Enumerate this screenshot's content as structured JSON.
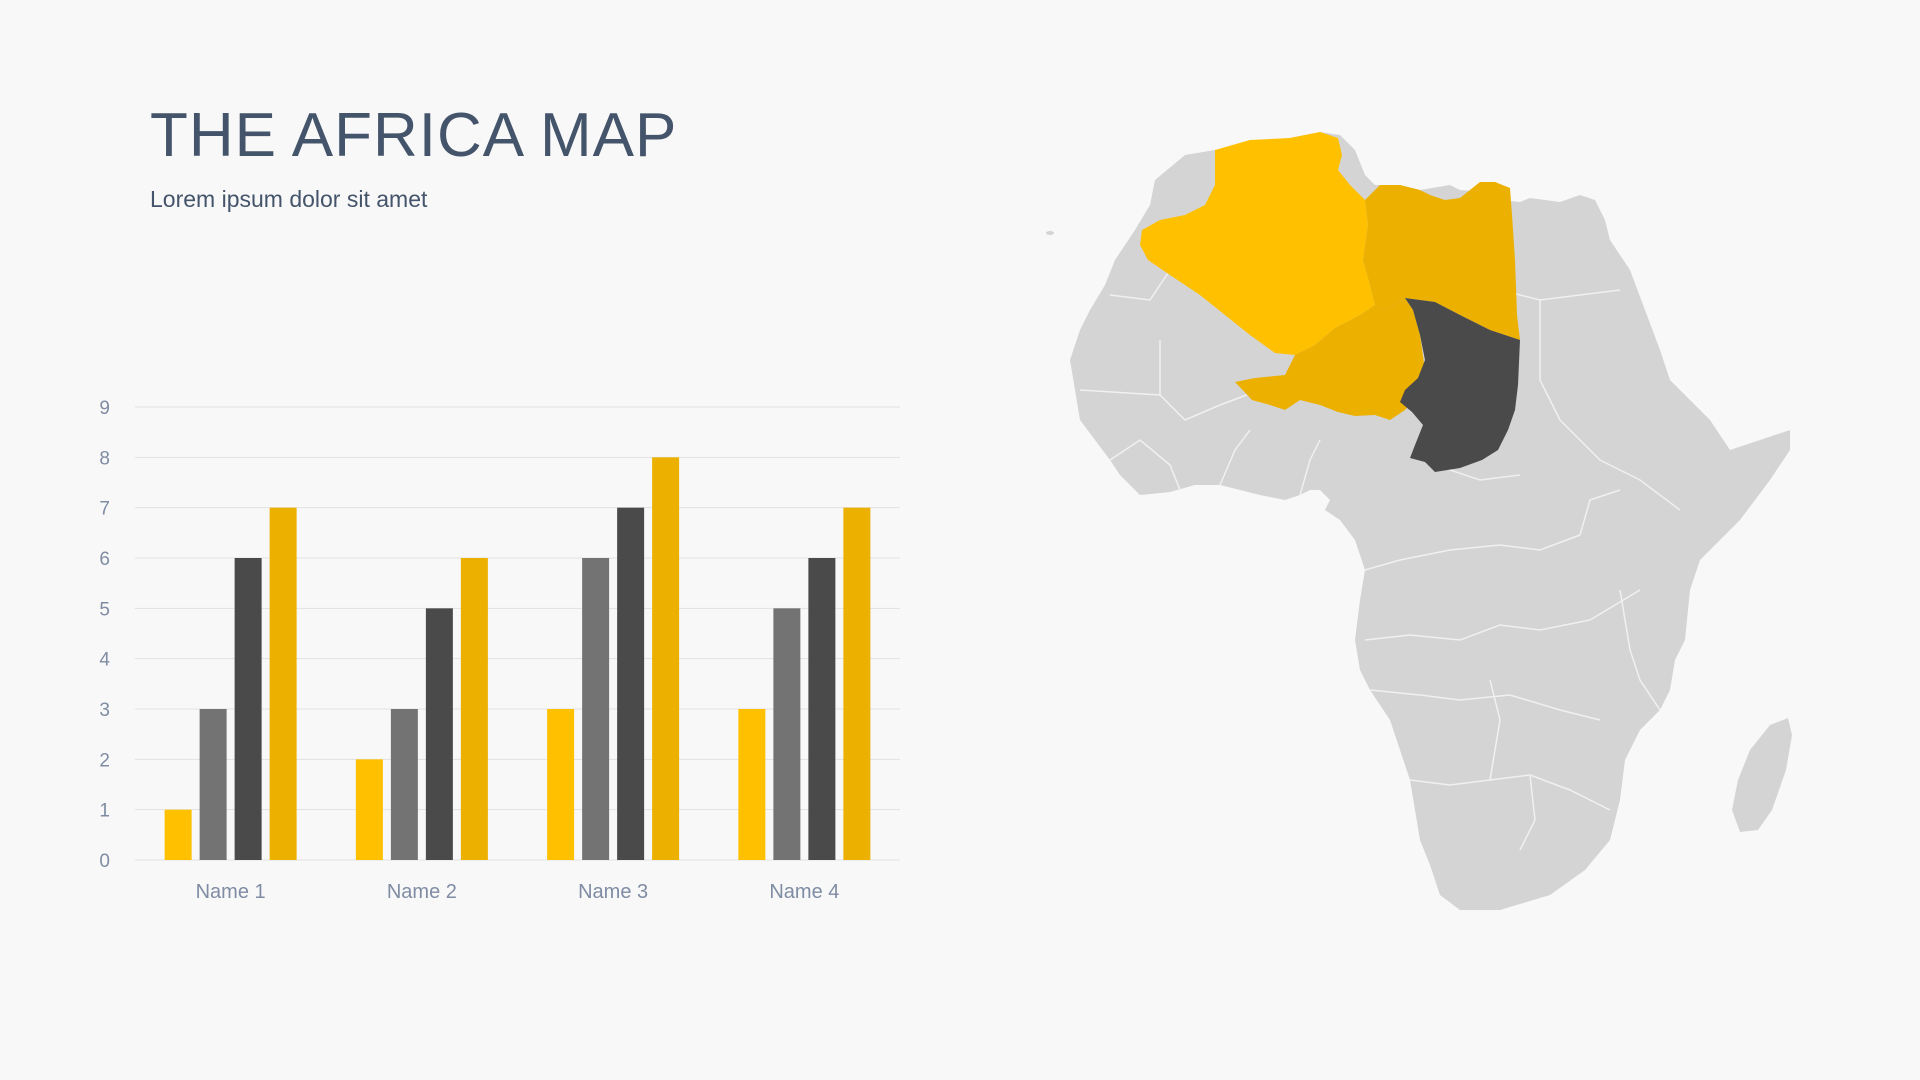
{
  "slide": {
    "title": "THE AFRICA MAP",
    "subtitle": "Lorem ipsum  dolor sit amet"
  },
  "colors": {
    "background": "#f8f8f8",
    "title": "#44546a",
    "axis_text": "#7f8ca3",
    "gridline": "#e2e2e2",
    "land": "#d4d4d4",
    "highlight_algeria": "#ffc000",
    "highlight_libya": "#ebb000",
    "highlight_niger": "#ebb000",
    "highlight_chad": "#4a4a4a"
  },
  "map": {
    "highlighted_regions": [
      "algeria",
      "libya",
      "niger",
      "chad"
    ]
  },
  "chart_data": {
    "type": "bar",
    "categories": [
      "Name 1",
      "Name 2",
      "Name 3",
      "Name 4"
    ],
    "series": [
      {
        "color": "#ffc000",
        "values": [
          1,
          2,
          3,
          3
        ]
      },
      {
        "color": "#737373",
        "values": [
          3,
          3,
          6,
          5
        ]
      },
      {
        "color": "#4a4a4a",
        "values": [
          6,
          5,
          7,
          6
        ]
      },
      {
        "color": "#ebb000",
        "values": [
          7,
          6,
          8,
          7
        ]
      }
    ],
    "ylim": [
      0,
      9
    ],
    "yticks": [
      0,
      1,
      2,
      3,
      4,
      5,
      6,
      7,
      8,
      9
    ],
    "grid": true,
    "legend": "none"
  }
}
